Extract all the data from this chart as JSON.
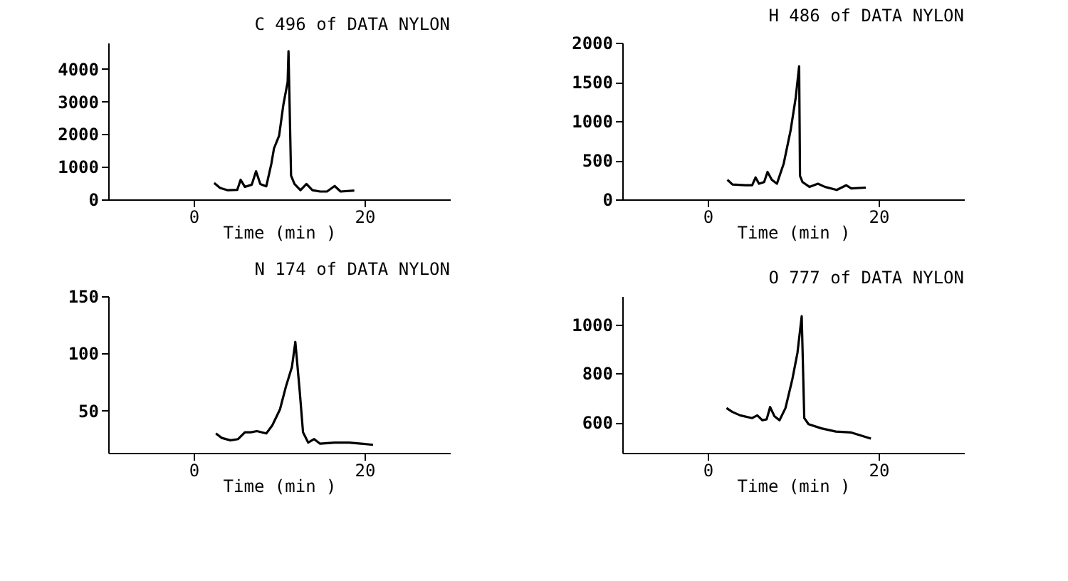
{
  "chart_data": [
    {
      "type": "line",
      "title": "C 496 of DATA NYLON",
      "xlabel": "Time (min )",
      "xlim": [
        -10,
        30
      ],
      "xticks": [
        0,
        20
      ],
      "ylim": [
        0,
        4800
      ],
      "yticks": [
        0,
        1000,
        2000,
        3000,
        4000
      ],
      "series": [
        {
          "color": "#000000",
          "x": [
            2.4,
            3.1,
            4.0,
            5.1,
            5.5,
            6.0,
            6.8,
            7.3,
            7.8,
            8.5,
            9.1,
            9.4,
            10.0,
            10.5,
            11.0,
            11.1,
            11.4,
            11.8,
            12.5,
            13.2,
            13.9,
            14.8,
            15.6,
            16.5,
            17.2,
            18.8
          ],
          "values": [
            500,
            350,
            280,
            290,
            600,
            380,
            450,
            860,
            470,
            400,
            1100,
            1560,
            1950,
            2900,
            3600,
            4540,
            730,
            470,
            280,
            470,
            280,
            240,
            240,
            410,
            240,
            270
          ]
        }
      ]
    },
    {
      "type": "line",
      "title": "H 486 of DATA NYLON",
      "xlabel": "Time (min )",
      "xlim": [
        -10,
        30
      ],
      "xticks": [
        0,
        20
      ],
      "ylim": [
        0,
        2000
      ],
      "yticks": [
        0,
        500,
        1000,
        1500,
        2000
      ],
      "series": [
        {
          "color": "#000000",
          "x": [
            2.3,
            2.9,
            4.4,
            5.2,
            5.6,
            6.0,
            6.6,
            7.0,
            7.5,
            8.1,
            8.9,
            9.7,
            10.3,
            10.7,
            10.8,
            11.1,
            11.9,
            12.9,
            13.7,
            15.1,
            16.2,
            16.8,
            18.5
          ],
          "values": [
            250,
            190,
            180,
            180,
            280,
            200,
            220,
            350,
            250,
            200,
            460,
            880,
            1300,
            1700,
            300,
            220,
            160,
            200,
            160,
            120,
            180,
            140,
            150
          ]
        }
      ]
    },
    {
      "type": "line",
      "title": "N 174 of DATA NYLON",
      "xlabel": "Time (min )",
      "xlim": [
        -10,
        30
      ],
      "xticks": [
        0,
        20
      ],
      "ylim": [
        13,
        150
      ],
      "yticks": [
        50,
        100,
        150
      ],
      "series": [
        {
          "color": "#000000",
          "x": [
            2.6,
            3.3,
            4.3,
            5.2,
            6.0,
            6.7,
            7.4,
            8.5,
            9.2,
            10.1,
            10.8,
            11.5,
            11.9,
            12.4,
            12.8,
            13.4,
            14.1,
            14.8,
            16.5,
            18.2,
            21.0
          ],
          "values": [
            30,
            26,
            24,
            25,
            31,
            31,
            32,
            30,
            37,
            51,
            71,
            88,
            110,
            68,
            31,
            22,
            25,
            21,
            22,
            22,
            20
          ]
        }
      ]
    },
    {
      "type": "line",
      "title": "O 777 of DATA NYLON",
      "xlabel": "Time (min )",
      "xlim": [
        -10,
        30
      ],
      "xticks": [
        0,
        20
      ],
      "ylim": [
        475,
        1115
      ],
      "yticks": [
        600,
        800,
        1000
      ],
      "series": [
        {
          "color": "#000000",
          "x": [
            2.2,
            2.9,
            3.8,
            5.2,
            5.8,
            6.4,
            6.9,
            7.3,
            7.8,
            8.4,
            9.1,
            9.9,
            10.5,
            11.0,
            11.3,
            11.8,
            13.3,
            15.0,
            16.8,
            19.1
          ],
          "values": [
            658,
            642,
            628,
            617,
            628,
            608,
            612,
            662,
            625,
            608,
            658,
            775,
            883,
            1033,
            617,
            592,
            575,
            562,
            558,
            533
          ]
        }
      ]
    }
  ]
}
